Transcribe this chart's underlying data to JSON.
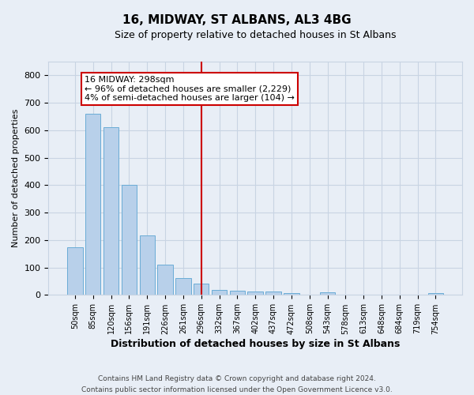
{
  "title": "16, MIDWAY, ST ALBANS, AL3 4BG",
  "subtitle": "Size of property relative to detached houses in St Albans",
  "xlabel": "Distribution of detached houses by size in St Albans",
  "ylabel": "Number of detached properties",
  "footer_line1": "Contains HM Land Registry data © Crown copyright and database right 2024.",
  "footer_line2": "Contains public sector information licensed under the Open Government Licence v3.0.",
  "bar_labels": [
    "50sqm",
    "85sqm",
    "120sqm",
    "156sqm",
    "191sqm",
    "226sqm",
    "261sqm",
    "296sqm",
    "332sqm",
    "367sqm",
    "402sqm",
    "437sqm",
    "472sqm",
    "508sqm",
    "543sqm",
    "578sqm",
    "613sqm",
    "648sqm",
    "684sqm",
    "719sqm",
    "754sqm"
  ],
  "bar_values": [
    175,
    660,
    610,
    400,
    218,
    110,
    63,
    42,
    18,
    17,
    14,
    13,
    8,
    0,
    9,
    0,
    0,
    0,
    0,
    0,
    7
  ],
  "bar_color": "#b8d0ea",
  "bar_edge_color": "#6aacd6",
  "grid_color": "#c8d4e3",
  "background_color": "#e8eef6",
  "annotation_line1": "16 MIDWAY: 298sqm",
  "annotation_line2": "← 96% of detached houses are smaller (2,229)",
  "annotation_line3": "4% of semi-detached houses are larger (104) →",
  "vline_x_index": 7,
  "vline_color": "#cc0000",
  "annotation_box_facecolor": "#ffffff",
  "annotation_box_edgecolor": "#cc0000",
  "ylim": [
    0,
    850
  ],
  "yticks": [
    0,
    100,
    200,
    300,
    400,
    500,
    600,
    700,
    800
  ]
}
